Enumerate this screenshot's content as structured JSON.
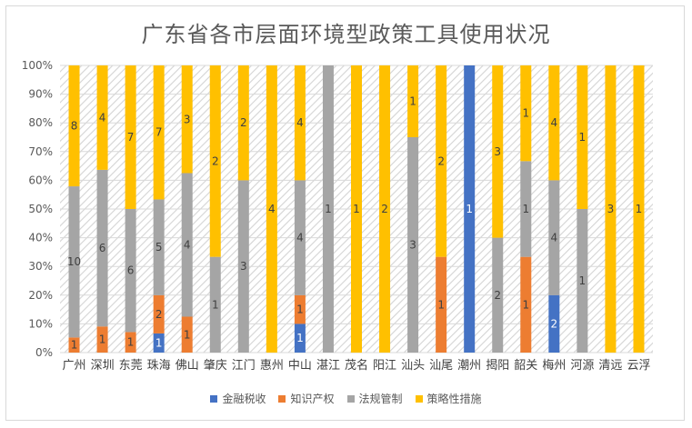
{
  "chart_data": {
    "type": "bar",
    "stacked": "percent",
    "title": "广东省各市层面环境型政策工具使用状况",
    "categories": [
      "广州",
      "深圳",
      "东莞",
      "珠海",
      "佛山",
      "肇庆",
      "江门",
      "惠州",
      "中山",
      "湛江",
      "茂名",
      "阳江",
      "汕头",
      "汕尾",
      "潮州",
      "揭阳",
      "韶关",
      "梅州",
      "河源",
      "清远",
      "云浮"
    ],
    "y_tick_labels": [
      "0%",
      "10%",
      "20%",
      "30%",
      "40%",
      "50%",
      "60%",
      "70%",
      "80%",
      "90%",
      "100%"
    ],
    "ylim": [
      0,
      100
    ],
    "grid": true,
    "legend_position": "bottom",
    "series": [
      {
        "name": "金融税收",
        "color": "#4472C4",
        "values": [
          0,
          0,
          0,
          1,
          0,
          0,
          0,
          0,
          1,
          0,
          0,
          0,
          0,
          0,
          1,
          0,
          0,
          2,
          0,
          0,
          0
        ]
      },
      {
        "name": "知识产权",
        "color": "#ED7D31",
        "values": [
          1,
          1,
          1,
          2,
          1,
          0,
          0,
          0,
          1,
          0,
          0,
          0,
          0,
          1,
          0,
          0,
          1,
          0,
          0,
          0,
          0
        ]
      },
      {
        "name": "法规管制",
        "color": "#A5A5A5",
        "values": [
          10,
          6,
          6,
          5,
          4,
          1,
          3,
          0,
          4,
          1,
          0,
          0,
          3,
          0,
          0,
          2,
          1,
          4,
          1,
          0,
          0
        ]
      },
      {
        "name": "策略性措施",
        "color": "#FFC000",
        "values": [
          8,
          4,
          7,
          7,
          3,
          2,
          2,
          4,
          4,
          0,
          1,
          2,
          1,
          2,
          0,
          3,
          1,
          4,
          1,
          3,
          1
        ]
      }
    ]
  }
}
